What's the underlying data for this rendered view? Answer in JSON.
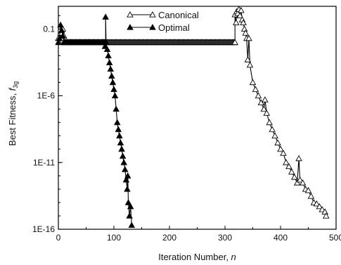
{
  "chart_data": {
    "type": "line",
    "xlabel": {
      "main": "Iteration Number, ",
      "var": "n"
    },
    "ylabel": {
      "main": "Best Fitness, ",
      "var": "f",
      "sub": "3g"
    },
    "xlim": [
      0,
      500
    ],
    "ylim_log10": [
      -16,
      0.7
    ],
    "y_scale": "log",
    "x_ticks": [
      0,
      100,
      200,
      300,
      400,
      500
    ],
    "y_ticks": [
      {
        "value": 0.1,
        "label": "0.1"
      },
      {
        "value": 1e-06,
        "label": "1E-6"
      },
      {
        "value": 1e-11,
        "label": "1E-11"
      },
      {
        "value": 1e-16,
        "label": "1E-16"
      }
    ],
    "legend_position": "top-center",
    "series": [
      {
        "name": "Canonical",
        "marker": "open-triangle",
        "color": "#000000",
        "plateau": {
          "x_from": 10,
          "x_to": 318,
          "y": 0.01
        },
        "points": [
          [
            0,
            0.02
          ],
          [
            2,
            0.01
          ],
          [
            4,
            0.05
          ],
          [
            6,
            0.02
          ],
          [
            8,
            0.1
          ],
          [
            10,
            0.03
          ],
          [
            12,
            0.01
          ],
          [
            318,
            0.01
          ],
          [
            318,
            1.2
          ],
          [
            320,
            0.3
          ],
          [
            321,
            2.0
          ],
          [
            323,
            1.5
          ],
          [
            325,
            3.0
          ],
          [
            327,
            1.0
          ],
          [
            329,
            2.5
          ],
          [
            331,
            0.5
          ],
          [
            333,
            0.3
          ],
          [
            335,
            0.1
          ],
          [
            337,
            0.05
          ],
          [
            339,
            0.02
          ],
          [
            341,
            0.0005
          ],
          [
            343,
            0.02
          ],
          [
            345,
            0.0002
          ],
          [
            350,
            1e-05
          ],
          [
            355,
            3e-06
          ],
          [
            360,
            1e-06
          ],
          [
            365,
            3e-07
          ],
          [
            370,
            1e-07
          ],
          [
            372,
            5e-07
          ],
          [
            375,
            5e-08
          ],
          [
            380,
            1e-08
          ],
          [
            385,
            3e-09
          ],
          [
            390,
            1e-09
          ],
          [
            395,
            3e-10
          ],
          [
            400,
            1e-10
          ],
          [
            405,
            5e-11
          ],
          [
            410,
            1e-11
          ],
          [
            415,
            5e-12
          ],
          [
            420,
            2e-12
          ],
          [
            425,
            8e-13
          ],
          [
            430,
            3e-13
          ],
          [
            433,
            2e-11
          ],
          [
            435,
            5e-13
          ],
          [
            440,
            3e-13
          ],
          [
            445,
            1e-13
          ],
          [
            450,
            8e-14
          ],
          [
            455,
            3e-14
          ],
          [
            460,
            1e-14
          ],
          [
            465,
            8e-15
          ],
          [
            470,
            5e-15
          ],
          [
            475,
            3e-15
          ],
          [
            480,
            2e-15
          ],
          [
            482,
            1e-15
          ]
        ]
      },
      {
        "name": "Optimal",
        "marker": "filled-triangle",
        "color": "#000000",
        "plateau": {
          "x_from": 10,
          "x_to": 85,
          "y": 0.01
        },
        "points": [
          [
            0,
            0.01
          ],
          [
            2,
            0.02
          ],
          [
            4,
            0.2
          ],
          [
            6,
            0.08
          ],
          [
            8,
            0.03
          ],
          [
            10,
            0.01
          ],
          [
            82,
            0.01
          ],
          [
            84,
            0.005
          ],
          [
            85,
            0.8
          ],
          [
            86,
            0.01
          ],
          [
            88,
            0.003
          ],
          [
            90,
            0.001
          ],
          [
            92,
            0.0003
          ],
          [
            94,
            0.0001
          ],
          [
            96,
            3e-05
          ],
          [
            98,
            1e-05
          ],
          [
            100,
            3e-06
          ],
          [
            102,
            1e-06
          ],
          [
            104,
            1e-07
          ],
          [
            106,
            1e-08
          ],
          [
            108,
            3e-09
          ],
          [
            110,
            1e-09
          ],
          [
            112,
            3e-10
          ],
          [
            114,
            1e-10
          ],
          [
            116,
            3e-11
          ],
          [
            118,
            1e-11
          ],
          [
            120,
            3e-12
          ],
          [
            122,
            5e-13
          ],
          [
            124,
            1e-13
          ],
          [
            125,
            1e-12
          ],
          [
            126,
            1e-14
          ],
          [
            128,
            1e-15
          ],
          [
            130,
            5e-15
          ],
          [
            132,
            2e-16
          ]
        ]
      }
    ]
  }
}
